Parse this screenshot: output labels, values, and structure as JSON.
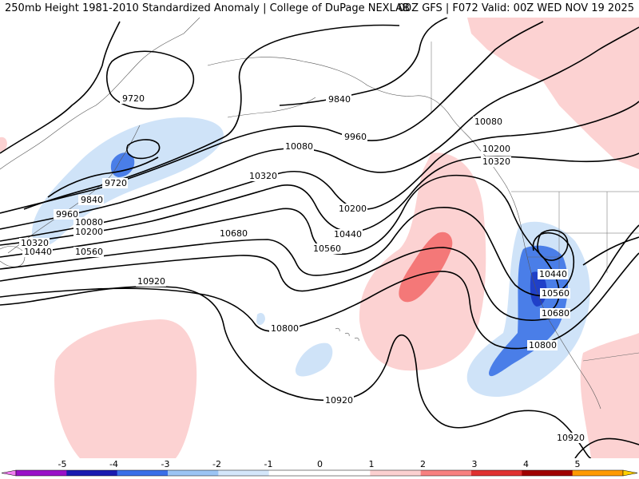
{
  "header": {
    "title_left": "250mb Height 1981-2010 Standardized Anomaly | College of DuPage NEXLAB",
    "title_right": "00Z GFS | F072 Valid: 00Z WED NOV 19 2025"
  },
  "contour_labels": {
    "l9720a": "9720",
    "l9720b": "9720",
    "l9840a": "9840",
    "l9840b": "9840",
    "l9960a": "9960",
    "l9960b": "9960",
    "l10080a": "10080",
    "l10080b": "10080",
    "l10080c": "10080",
    "l10200a": "10200",
    "l10200b": "10200",
    "l10200c": "10200",
    "l10320a": "10320",
    "l10320b": "10320",
    "l10320c": "10320",
    "l10440a": "10440",
    "l10440b": "10440",
    "l10440c": "10440",
    "l10560a": "10560",
    "l10560b": "10560",
    "l10560c": "10560",
    "l10680a": "10680",
    "l10680b": "10680",
    "l10800a": "10800",
    "l10800b": "10800",
    "l10920a": "10920",
    "l10920b": "10920",
    "l10920c": "10920"
  },
  "colorbar": {
    "ticks": [
      "-5",
      "-4",
      "-3",
      "-2",
      "-1",
      "0",
      "1",
      "2",
      "3",
      "4",
      "5"
    ],
    "colors": [
      "#f07ef0",
      "#9a10c8",
      "#1a1ab0",
      "#3a6ee8",
      "#9cc4f4",
      "#d4e6fa",
      "#ffffff",
      "#ffffff",
      "#fcd0d0",
      "#f88080",
      "#e03030",
      "#a00000",
      "#ff9a00",
      "#ffd000"
    ]
  },
  "anomaly_colors": {
    "light_blue": "#cfe3f8",
    "mid_blue": "#4a7ee8",
    "dark_blue": "#2040c8",
    "light_pink": "#fcd2d2",
    "mid_red": "#f47878"
  }
}
